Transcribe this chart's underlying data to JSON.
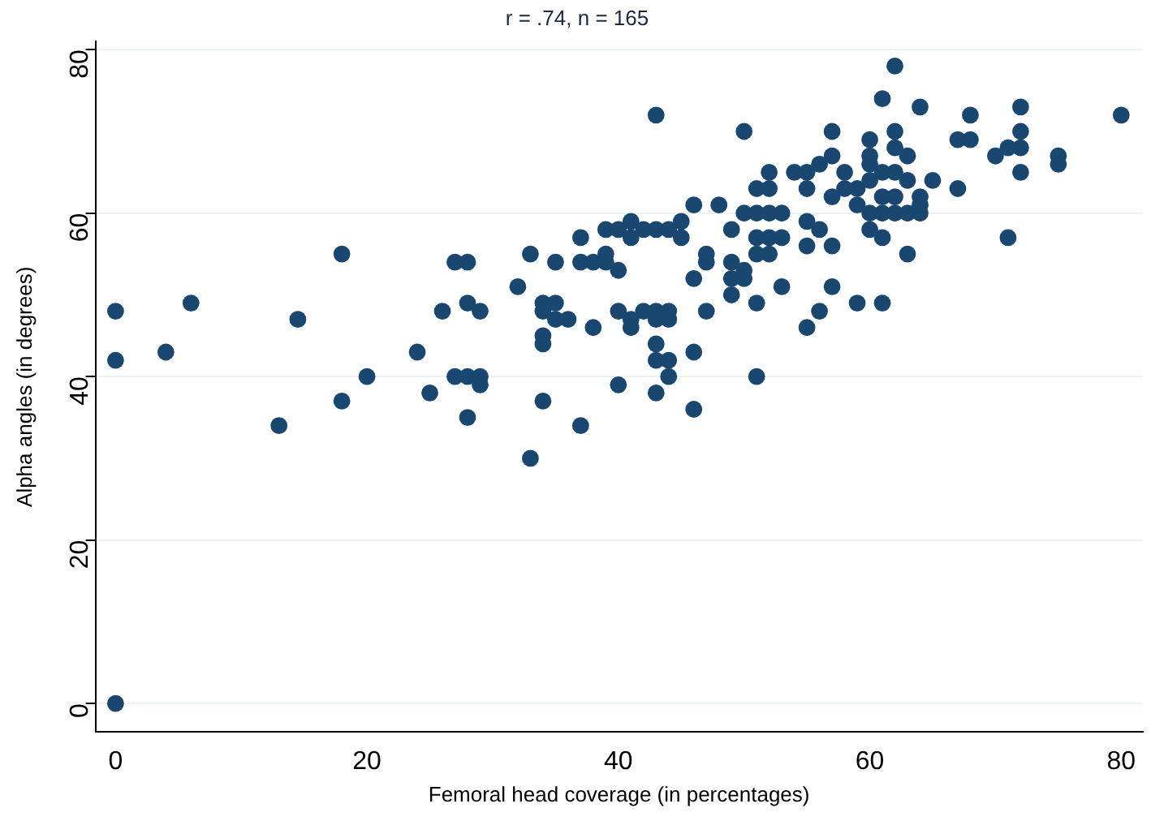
{
  "chart_data": {
    "type": "scatter",
    "title": "r = .74, n = 165",
    "xlabel": "Femoral head coverage (in percentages)",
    "ylabel": "Alpha angles (in degrees)",
    "xlim": [
      -1.6,
      81.7
    ],
    "ylim": [
      -3.5,
      81
    ],
    "xticks": [
      0,
      20,
      40,
      60,
      80
    ],
    "yticks": [
      0,
      20,
      40,
      60,
      80
    ],
    "grid": "y",
    "marker": "circle",
    "legend": false,
    "series": [
      {
        "color": "#1a476f",
        "x": [
          0,
          0,
          0,
          4,
          6,
          13,
          14.5,
          18,
          18,
          20,
          24,
          25,
          26,
          27,
          27,
          28,
          28,
          28,
          28,
          29,
          29,
          29,
          32,
          33,
          33,
          34,
          34,
          34,
          34,
          34,
          35,
          35,
          35,
          36,
          37,
          37,
          37,
          38,
          38,
          39,
          39,
          39,
          40,
          40,
          40,
          40,
          41,
          41,
          41,
          41,
          42,
          42,
          43,
          43,
          43,
          43,
          43,
          43,
          43,
          44,
          44,
          44,
          44,
          44,
          45,
          45,
          46,
          46,
          46,
          46,
          47,
          47,
          47,
          48,
          49,
          49,
          49,
          49,
          50,
          50,
          50,
          50,
          51,
          51,
          51,
          51,
          51,
          51,
          52,
          52,
          52,
          52,
          52,
          53,
          53,
          53,
          54,
          55,
          55,
          55,
          55,
          55,
          56,
          56,
          56,
          57,
          57,
          57,
          57,
          57,
          58,
          58,
          59,
          59,
          59,
          60,
          60,
          60,
          60,
          60,
          60,
          61,
          61,
          61,
          61,
          61,
          61,
          62,
          62,
          62,
          62,
          62,
          62,
          63,
          63,
          63,
          63,
          64,
          64,
          64,
          64,
          65,
          67,
          67,
          68,
          68,
          70,
          71,
          71,
          72,
          72,
          72,
          72,
          75,
          75,
          80
        ],
        "values": [
          48,
          42,
          0,
          43,
          49,
          34,
          47,
          55,
          37,
          40,
          43,
          38,
          48,
          54,
          40,
          54,
          49,
          40,
          35,
          48,
          40,
          39,
          51,
          55,
          30,
          49,
          48,
          45,
          44,
          37,
          54,
          49,
          47,
          47,
          57,
          54,
          34,
          54,
          46,
          58,
          55,
          54,
          58,
          53,
          48,
          39,
          59,
          57,
          47,
          46,
          58,
          48,
          72,
          58,
          48,
          47,
          44,
          42,
          38,
          58,
          48,
          42,
          40,
          47,
          59,
          57,
          61,
          52,
          43,
          36,
          55,
          54,
          48,
          61,
          58,
          54,
          52,
          50,
          70,
          60,
          53,
          52,
          63,
          60,
          57,
          55,
          49,
          40,
          65,
          63,
          60,
          57,
          55,
          60,
          57,
          51,
          65,
          65,
          63,
          59,
          56,
          46,
          66,
          58,
          48,
          70,
          67,
          62,
          56,
          51,
          65,
          63,
          63,
          61,
          49,
          69,
          67,
          66,
          64,
          60,
          58,
          74,
          65,
          62,
          60,
          57,
          49,
          78,
          70,
          68,
          65,
          62,
          60,
          67,
          64,
          60,
          55,
          73,
          62,
          61,
          60,
          64,
          69,
          63,
          72,
          69,
          67,
          68,
          57,
          73,
          70,
          68,
          65,
          67,
          66,
          72
        ]
      }
    ]
  }
}
